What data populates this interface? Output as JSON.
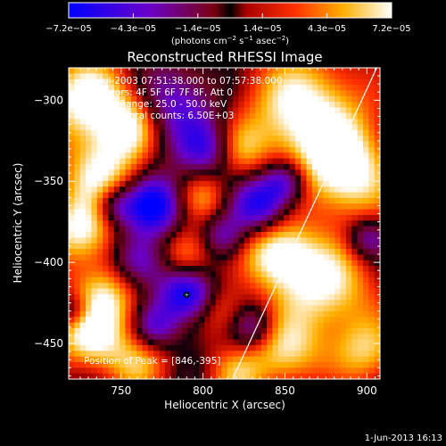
{
  "chart_data": {
    "type": "heatmap",
    "title": "Reconstructed RHESSI Image",
    "xlabel": "Heliocentric X (arcsec)",
    "ylabel": "Heliocentric Y (arcsec)",
    "xlim": [
      718,
      908
    ],
    "ylim": [
      -472,
      -280
    ],
    "x_ticks": [
      750,
      800,
      850,
      900
    ],
    "y_ticks": [
      -300,
      -350,
      -400,
      -450
    ],
    "x_tick_labels": [
      "750",
      "800",
      "850",
      "900"
    ],
    "y_tick_labels": [
      "−300",
      "−350",
      "−400",
      "−450"
    ],
    "colorbar": {
      "min": -7.2e-05,
      "max": 7.2e-05,
      "tick_labels": [
        "−7.2e−05",
        "−4.3e−05",
        "−1.4e−05",
        "1.4e−05",
        "4.3e−05",
        "7.2e−05"
      ],
      "unit_main": "(photons cm",
      "unit_sup1": "−2",
      "unit_mid": " s",
      "unit_sup2": "−1",
      "unit_mid2": " asec",
      "unit_sup3": "−2",
      "unit_end": ")",
      "colors": [
        "#0000ff",
        "#6600cc",
        "#990000",
        "#ff2200",
        "#ffaa00",
        "#ffffff"
      ]
    },
    "annotations": {
      "time_range": "23-Jul-2003 07:51:38.000 to 07:57:38.000",
      "detectors": "Detectors: 4F 5F 6F 7F 8F, Att 0",
      "energy": "Energy Range: 25.0 - 50.0 keV",
      "clean": "Clean     Total counts: 6.50E+03",
      "peak": "Position of Peak = [846,-395]"
    },
    "peak": {
      "x": 846,
      "y": -395
    },
    "minimum_marker": {
      "x": 790,
      "y": -420
    },
    "limb_line": [
      {
        "x": 818,
        "y": -472
      },
      {
        "x": 906,
        "y": -280
      }
    ],
    "blobs": [
      {
        "x": 730,
        "y": -300,
        "v": 1.0,
        "s": 20
      },
      {
        "x": 758,
        "y": -315,
        "v": 0.8,
        "s": 14
      },
      {
        "x": 738,
        "y": -345,
        "v": 0.85,
        "s": 16
      },
      {
        "x": 725,
        "y": -380,
        "v": 0.9,
        "s": 15
      },
      {
        "x": 742,
        "y": -420,
        "v": 0.75,
        "s": 16
      },
      {
        "x": 730,
        "y": -445,
        "v": 0.9,
        "s": 15
      },
      {
        "x": 790,
        "y": -395,
        "v": 0.7,
        "s": 12
      },
      {
        "x": 800,
        "y": -360,
        "v": 0.55,
        "s": 11
      },
      {
        "x": 812,
        "y": -430,
        "v": 0.5,
        "s": 12
      },
      {
        "x": 846,
        "y": -395,
        "v": 1.0,
        "s": 15
      },
      {
        "x": 862,
        "y": -308,
        "v": 1.0,
        "s": 26
      },
      {
        "x": 888,
        "y": -345,
        "v": 0.95,
        "s": 20
      },
      {
        "x": 875,
        "y": -415,
        "v": 0.9,
        "s": 20
      },
      {
        "x": 850,
        "y": -455,
        "v": 0.8,
        "s": 16
      },
      {
        "x": 820,
        "y": -330,
        "v": 0.55,
        "s": 12
      },
      {
        "x": 900,
        "y": -455,
        "v": 0.7,
        "s": 15
      },
      {
        "x": 760,
        "y": -462,
        "v": 0.6,
        "s": 14
      },
      {
        "x": 820,
        "y": -470,
        "v": 0.55,
        "s": 12
      },
      {
        "x": 770,
        "y": -365,
        "v": -1.0,
        "s": 13
      },
      {
        "x": 790,
        "y": -420,
        "v": -1.0,
        "s": 12
      },
      {
        "x": 780,
        "y": -305,
        "v": -0.7,
        "s": 18
      },
      {
        "x": 835,
        "y": -365,
        "v": -0.85,
        "s": 12
      },
      {
        "x": 850,
        "y": -350,
        "v": -0.8,
        "s": 10
      },
      {
        "x": 760,
        "y": -400,
        "v": -0.75,
        "s": 12
      },
      {
        "x": 805,
        "y": -330,
        "v": -0.7,
        "s": 12
      },
      {
        "x": 812,
        "y": -385,
        "v": -0.55,
        "s": 10
      },
      {
        "x": 745,
        "y": -365,
        "v": -0.6,
        "s": 9
      },
      {
        "x": 770,
        "y": -440,
        "v": -0.6,
        "s": 10
      },
      {
        "x": 830,
        "y": -440,
        "v": -0.6,
        "s": 10
      },
      {
        "x": 722,
        "y": -430,
        "v": -0.6,
        "s": 8
      },
      {
        "x": 900,
        "y": -385,
        "v": -0.55,
        "s": 9
      }
    ]
  },
  "footer": {
    "date": "1-Jun-2013 16:13"
  }
}
